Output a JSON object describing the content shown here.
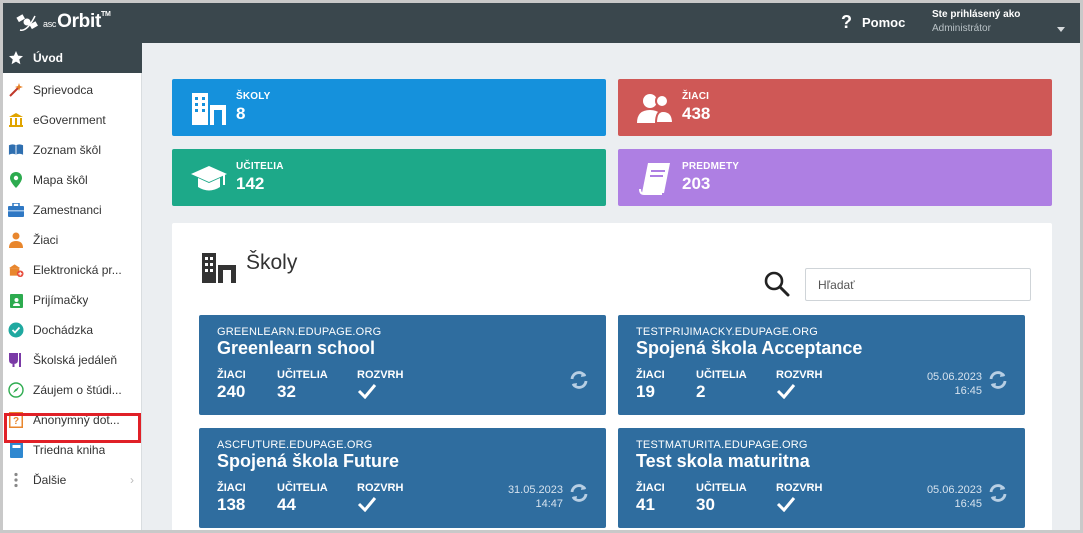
{
  "header": {
    "logo_prefix": "asc",
    "logo_name": "Orbit",
    "logo_tm": "TM",
    "help_label": "Pomoc",
    "user_line1": "Ste prihlásený ako",
    "user_line2": "Administrátor"
  },
  "sidebar": {
    "items": [
      {
        "label": "Úvod",
        "icon": "star-icon"
      },
      {
        "label": "Sprievodca",
        "icon": "wand-icon"
      },
      {
        "label": "eGovernment",
        "icon": "government-building-icon"
      },
      {
        "label": "Zoznam škôl",
        "icon": "book-icon"
      },
      {
        "label": "Mapa škôl",
        "icon": "map-pin-icon"
      },
      {
        "label": "Zamestnanci",
        "icon": "briefcase-icon"
      },
      {
        "label": "Žiaci",
        "icon": "student-icon"
      },
      {
        "label": "Elektronická pr...",
        "icon": "school-add-icon"
      },
      {
        "label": "Prijímačky",
        "icon": "clipboard-user-icon"
      },
      {
        "label": "Dochádzka",
        "icon": "check-circle-icon"
      },
      {
        "label": "Školská jedáleň",
        "icon": "cup-icon"
      },
      {
        "label": "Záujem o štúdi...",
        "icon": "compass-icon"
      },
      {
        "label": "Anonymný dot...",
        "icon": "question-form-icon"
      },
      {
        "label": "Triedna kniha",
        "icon": "class-book-icon"
      },
      {
        "label": "Ďalšie",
        "icon": "more-vertical-icon"
      }
    ]
  },
  "stats": {
    "schools": {
      "label": "ŠKOLY",
      "value": "8",
      "color": "#1591dc"
    },
    "students": {
      "label": "ŽIACI",
      "value": "438",
      "color": "#cf5856"
    },
    "teachers": {
      "label": "UČITEĽIA",
      "value": "142",
      "color": "#1da989"
    },
    "subjects": {
      "label": "PREDMETY",
      "value": "203",
      "color": "#ae7fe3"
    }
  },
  "panel": {
    "title": "Školy",
    "search_placeholder": "Hľadať"
  },
  "labels": {
    "students": "ŽIACI",
    "teachers": "UČITELIA",
    "timetable": "ROZVRH"
  },
  "cards": [
    {
      "domain": "GREENLEARN.EDUPAGE.ORG",
      "name": "Greenlearn school",
      "students": "240",
      "teachers": "32",
      "date": "",
      "time": ""
    },
    {
      "domain": "TESTPRIJIMACKY.EDUPAGE.ORG",
      "name": "Spojená škola Acceptance",
      "students": "19",
      "teachers": "2",
      "date": "05.06.2023",
      "time": "16:45"
    },
    {
      "domain": "ASCFUTURE.EDUPAGE.ORG",
      "name": "Spojená škola Future",
      "students": "138",
      "teachers": "44",
      "date": "31.05.2023",
      "time": "14:47"
    },
    {
      "domain": "TESTMATURITA.EDUPAGE.ORG",
      "name": "Test skola maturitna",
      "students": "41",
      "teachers": "30",
      "date": "05.06.2023",
      "time": "16:45"
    }
  ],
  "colors": {
    "topbar": "#3a474d",
    "card": "#2f6d9f",
    "highlight": "#e02027"
  }
}
